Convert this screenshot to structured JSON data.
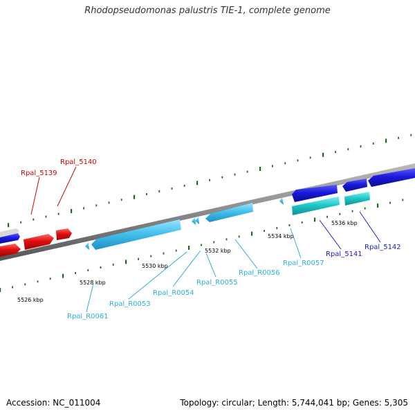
{
  "title": "Rhodopseudomonas palustris TIE-1, complete genome",
  "footer": {
    "accession": "Accession: NC_011004",
    "summary": "Topology: circular; Length: 5,744,041 bp; Genes: 5,305"
  },
  "colors": {
    "backbone": "#8a8a8a",
    "tick": "#1e6b1e",
    "red_gene": "#e01010",
    "red_label": "#cc0000",
    "blue_gene": "#1a1adc",
    "blue_label": "#1a1acc",
    "cyan_gene": "#45c2ee",
    "cyan_label": "#2ab0d8",
    "teal_gene": "#22c8c8"
  },
  "scale_labels": [
    "5526 kbp",
    "5528 kbp",
    "5530 kbp",
    "5532 kbp",
    "5534 kbp",
    "5536 kbp"
  ],
  "gene_labels": {
    "Rpal_5139": "Rpal_5139",
    "Rpal_5140": "Rpal_5140",
    "Rpal_5141": "Rpal_5141",
    "Rpal_5142": "Rpal_5142",
    "Rpal_R0061": "Rpal_R0061",
    "Rpal_R0053": "Rpal_R0053",
    "Rpal_R0054": "Rpal_R0054",
    "Rpal_R0055": "Rpal_R0055",
    "Rpal_R0056": "Rpal_R0056",
    "Rpal_R0057": "Rpal_R0057"
  }
}
